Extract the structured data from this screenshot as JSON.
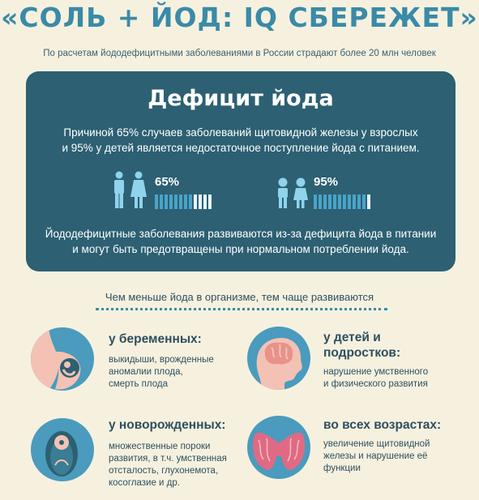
{
  "title": "«СОЛЬ + ЙОД: IQ СБЕРЕЖЕТ»",
  "subtitle": "По расчетам йододефицитными заболеваниями в России страдают более 20 млн человек",
  "card": {
    "title": "Дефицит йода",
    "intro_line1": "Причиной 65% случаев заболеваний щитовидной железы у взрослых",
    "intro_line2": "и 95% у детей является недостаточное поступление йода с питанием.",
    "adults": {
      "percent_label": "65%",
      "fraction": 0.65
    },
    "children": {
      "percent_label": "95%",
      "fraction": 0.95
    },
    "outro_line1": "Йододефицитные заболевания развиваются из-за дефицита йода в питании",
    "outro_line2": "и могут быть предотвращены при нормальном потреблении йода."
  },
  "section_heading": "Чем меньше йода в организме, тем чаще развиваются",
  "groups": {
    "pregnant": {
      "heading": "у беременных:",
      "lines": [
        "выкидыши, врожденные",
        "аномалии плода,",
        "смерть плода"
      ]
    },
    "children": {
      "heading_line1": "у детей и",
      "heading_line2": "подростков:",
      "lines": [
        "нарушение умственного",
        "и физического развития"
      ]
    },
    "newborns": {
      "heading": "у новорожденных:",
      "lines": [
        "множественные пороки",
        "развития, в т.ч. умственная",
        "отсталость, глухонемота,",
        "косоглазие и др."
      ]
    },
    "all_ages": {
      "heading": "во всех возрастах:",
      "lines": [
        "увеличение щитовидной",
        "железы и нарушение её",
        "функции"
      ]
    }
  },
  "colors": {
    "background": "#f6f1df",
    "card": "#2c6072",
    "accent": "#3a8aa8",
    "icon_light": "#8fd3ec",
    "circle": "#4a9bbd",
    "skin": "#f3c2b4",
    "thyroid": "#e06a86"
  }
}
